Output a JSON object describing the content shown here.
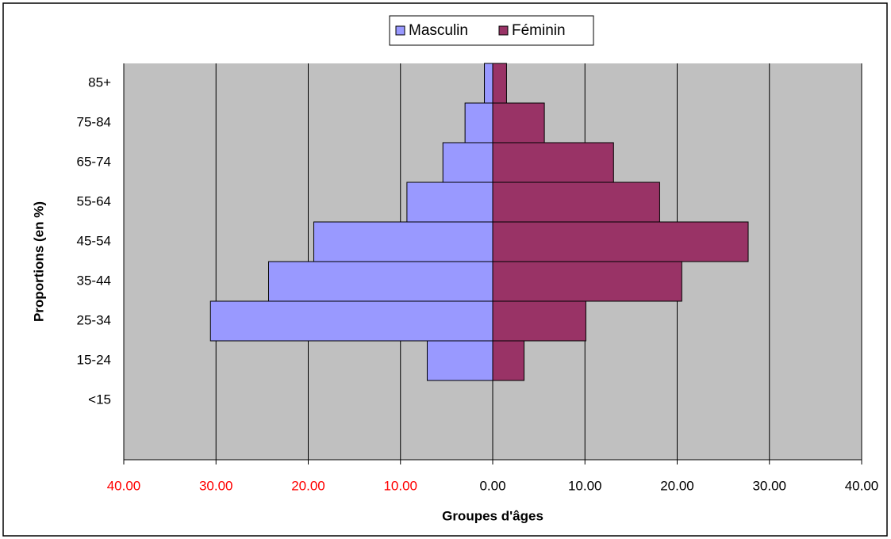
{
  "chart_data": {
    "type": "pyramid",
    "x_label": "Groupes d'âges",
    "y_label": "Proportions (en %)",
    "categories": [
      "85+",
      "75-84",
      "65-74",
      "55-64",
      "45-54",
      "35-44",
      "25-34",
      "15-24",
      "<15",
      null
    ],
    "series": [
      {
        "name": "Masculin",
        "color": "#9999ff",
        "values": [
          -0.9,
          -3.0,
          -5.4,
          -9.3,
          -19.4,
          -24.3,
          -30.6,
          -7.1,
          null,
          null
        ]
      },
      {
        "name": "Féminin",
        "color": "#993366",
        "values": [
          1.5,
          5.6,
          13.1,
          18.1,
          27.7,
          20.5,
          10.1,
          3.4,
          null,
          null
        ]
      }
    ],
    "xlim": [
      -40,
      40
    ],
    "xticks": [
      {
        "value": -40,
        "label": "40.00"
      },
      {
        "value": -30,
        "label": "30.00"
      },
      {
        "value": -20,
        "label": "20.00"
      },
      {
        "value": -10,
        "label": "10.00"
      },
      {
        "value": 0,
        "label": "0.00"
      },
      {
        "value": 10,
        "label": "10.00"
      },
      {
        "value": 20,
        "label": "20.00"
      },
      {
        "value": 30,
        "label": "30.00"
      },
      {
        "value": 40,
        "label": "40.00"
      }
    ],
    "negative_tick_color": "#ff0000",
    "plot_background": "#c0c0c0",
    "grid": true,
    "legend": "top"
  }
}
